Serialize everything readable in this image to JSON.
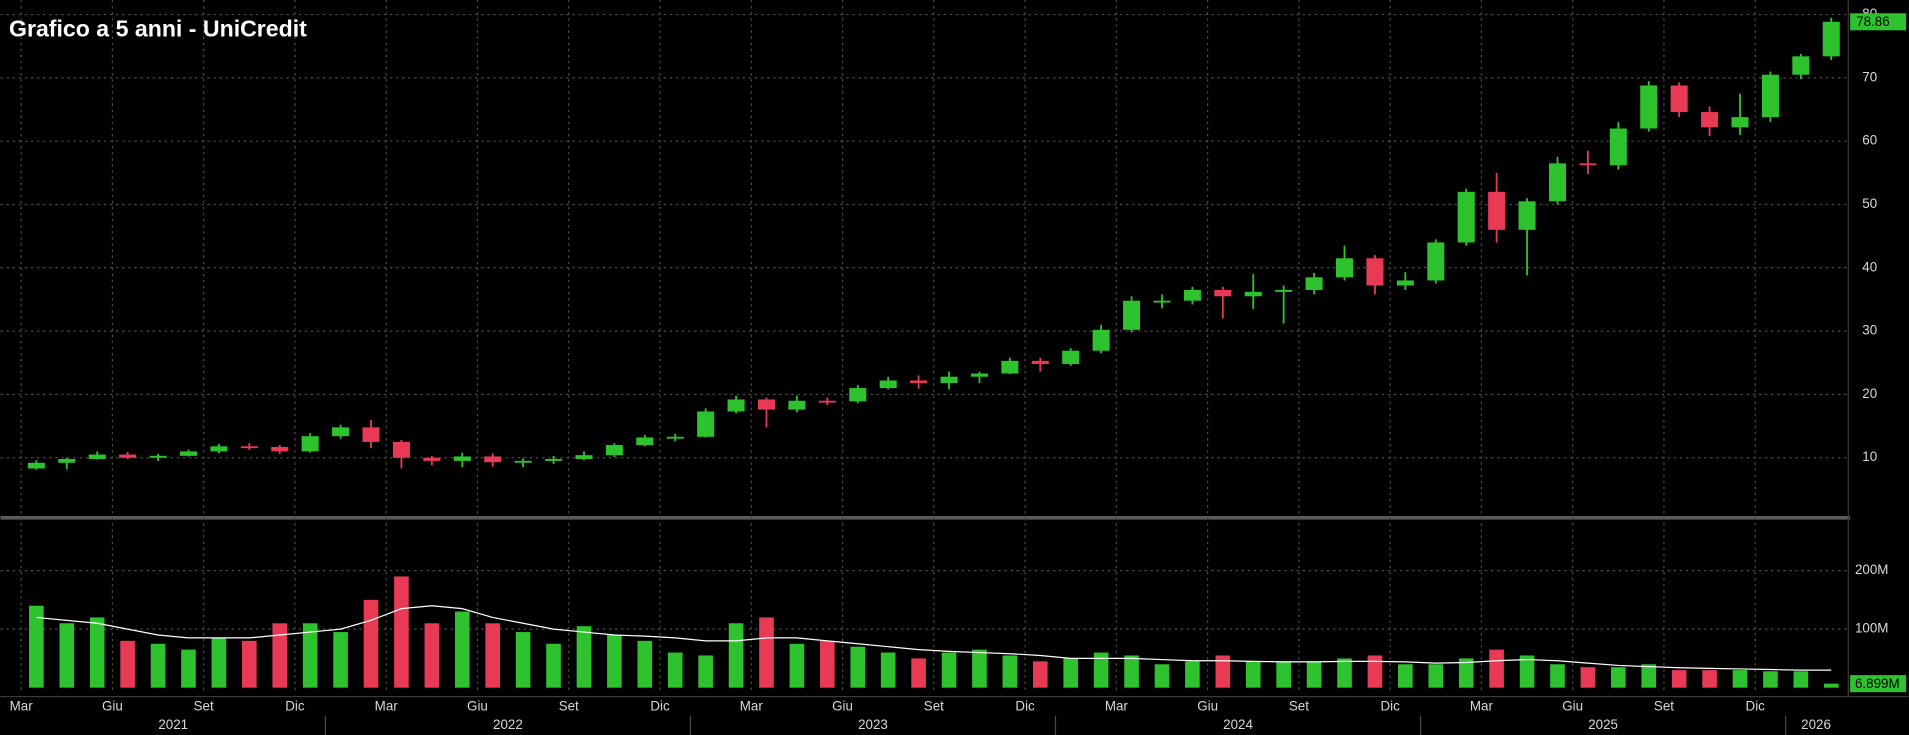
{
  "chart_data": {
    "type": "candlestick",
    "title": "Grafico a 5 anni - UniCredit",
    "x": [
      "2021-03",
      "2021-04",
      "2021-05",
      "2021-06",
      "2021-07",
      "2021-08",
      "2021-09",
      "2021-10",
      "2021-11",
      "2021-12",
      "2022-01",
      "2022-02",
      "2022-03",
      "2022-04",
      "2022-05",
      "2022-06",
      "2022-07",
      "2022-08",
      "2022-09",
      "2022-10",
      "2022-11",
      "2022-12",
      "2023-01",
      "2023-02",
      "2023-03",
      "2023-04",
      "2023-05",
      "2023-06",
      "2023-07",
      "2023-08",
      "2023-09",
      "2023-10",
      "2023-11",
      "2023-12",
      "2024-01",
      "2024-02",
      "2024-03",
      "2024-04",
      "2024-05",
      "2024-06",
      "2024-07",
      "2024-08",
      "2024-09",
      "2024-10",
      "2024-11",
      "2024-12",
      "2025-01",
      "2025-02",
      "2025-03",
      "2025-04",
      "2025-05",
      "2025-06",
      "2025-07",
      "2025-08",
      "2025-09",
      "2025-10",
      "2025-11",
      "2025-12",
      "2026-01",
      "2026-02"
    ],
    "open": [
      8.3,
      9.2,
      9.8,
      10.5,
      10,
      10.3,
      11,
      11.8,
      11.7,
      11,
      13.4,
      14.8,
      12.5,
      10,
      9.5,
      10.2,
      9.3,
      9.5,
      9.8,
      10.4,
      12,
      13.2,
      13.3,
      17.3,
      19.2,
      17.6,
      19,
      18.9,
      21,
      22.2,
      21.8,
      22.8,
      23.3,
      25.3,
      24.8,
      26.9,
      30.2,
      34.8,
      34.8,
      36.5,
      35.5,
      36.2,
      36.5,
      38.5,
      41.5,
      37.2,
      38,
      44,
      52,
      46,
      50.5,
      56.5,
      56.2,
      62,
      68.8,
      64.6,
      62.2,
      63.8,
      70.5,
      73.4
    ],
    "high": [
      9.6,
      10,
      11,
      10.9,
      10.6,
      11.3,
      12.2,
      12.3,
      12,
      13.9,
      15.2,
      16,
      12.8,
      10.3,
      10.8,
      10.7,
      9.9,
      10.3,
      11,
      12.3,
      13.6,
      13.8,
      17.8,
      19.8,
      19.5,
      19.8,
      19.5,
      21.5,
      22.8,
      23,
      23.6,
      23.6,
      25.8,
      25.8,
      27.3,
      31,
      35.5,
      35.8,
      37,
      37,
      39,
      37.2,
      39.2,
      43.5,
      42,
      39.3,
      44.5,
      52.5,
      55,
      51,
      57.5,
      58.5,
      63,
      69.5,
      69.3,
      65.5,
      67.5,
      71,
      73.8,
      79.5
    ],
    "low": [
      8.1,
      8.2,
      9.7,
      9.8,
      9.5,
      10.2,
      10.7,
      11.2,
      10.6,
      10.8,
      13,
      11.5,
      8.3,
      8.8,
      8.5,
      8.6,
      8.5,
      9,
      9.6,
      10.1,
      11.8,
      12.6,
      13.2,
      17,
      14.8,
      17.2,
      18.3,
      18.6,
      20.8,
      20.9,
      20.8,
      21.8,
      23.2,
      23.6,
      24.5,
      26.5,
      29.8,
      33.6,
      34.2,
      32,
      33.5,
      31.2,
      35.8,
      38,
      35.8,
      36.5,
      37.5,
      43.5,
      44,
      38.8,
      50,
      54.8,
      55.5,
      61.5,
      63.8,
      60.8,
      61,
      63,
      69.8,
      72.8
    ],
    "close": [
      9.2,
      9.8,
      10.5,
      10,
      10.3,
      11,
      11.8,
      11.7,
      11,
      13.4,
      14.8,
      12.5,
      10,
      9.5,
      10.2,
      9.3,
      9.5,
      9.8,
      10.4,
      12,
      13.2,
      13.3,
      17.3,
      19.2,
      17.6,
      19,
      18.9,
      21,
      22.2,
      21.8,
      22.8,
      23.3,
      25.3,
      24.8,
      26.9,
      30.2,
      34.8,
      34.8,
      36.5,
      35.5,
      36.2,
      36.5,
      38.5,
      41.5,
      37.2,
      38,
      44,
      52,
      46,
      50.5,
      56.5,
      56.2,
      62,
      68.8,
      64.6,
      62.2,
      63.8,
      70.5,
      73.4,
      78.86
    ],
    "up_color": "#2ec32e",
    "down_color": "#e83a55",
    "ylim": [
      0.8,
      82.3
    ],
    "yticks": [
      10,
      20,
      30,
      40,
      50,
      60,
      70,
      80
    ],
    "grid": true,
    "volume": {
      "values": [
        140,
        110,
        120,
        80,
        75,
        65,
        85,
        80,
        110,
        110,
        95,
        150,
        190,
        110,
        130,
        110,
        95,
        75,
        105,
        90,
        80,
        60,
        55,
        110,
        120,
        75,
        80,
        70,
        60,
        50,
        60,
        65,
        55,
        45,
        50,
        60,
        55,
        40,
        45,
        55,
        45,
        45,
        45,
        50,
        55,
        40,
        40,
        50,
        65,
        55,
        40,
        35,
        35,
        40,
        30,
        30,
        30,
        28,
        28,
        6.899
      ],
      "value_labels": [
        null,
        null,
        null,
        null,
        null,
        null,
        null,
        null,
        null,
        null,
        null,
        null,
        null,
        null,
        null,
        null,
        null,
        null,
        null,
        null,
        null,
        null,
        null,
        null,
        null,
        null,
        null,
        null,
        null,
        null,
        null,
        null,
        null,
        null,
        null,
        null,
        null,
        null,
        null,
        null,
        null,
        null,
        null,
        null,
        null,
        null,
        null,
        null,
        null,
        null,
        null,
        null,
        null,
        null,
        null,
        null,
        null,
        null,
        null,
        "6.899M"
      ],
      "ma_values": [
        120,
        115,
        110,
        100,
        90,
        85,
        85,
        85,
        90,
        95,
        100,
        115,
        135,
        140,
        135,
        120,
        110,
        100,
        95,
        90,
        88,
        85,
        80,
        80,
        85,
        85,
        80,
        75,
        70,
        65,
        62,
        60,
        58,
        55,
        50,
        50,
        50,
        48,
        46,
        46,
        45,
        44,
        44,
        45,
        45,
        44,
        42,
        43,
        46,
        48,
        46,
        42,
        38,
        36,
        34,
        33,
        32,
        31,
        30,
        30
      ],
      "ma_color": "#ffffff",
      "ylim": [
        -6,
        285
      ],
      "yticks": [
        {
          "value": 100,
          "label": "100M"
        },
        {
          "value": 200,
          "label": "200M"
        }
      ]
    },
    "x_month_ticks": [
      {
        "value": "2021-03",
        "label": "Mar"
      },
      {
        "value": "2021-06",
        "label": "Giu"
      },
      {
        "value": "2021-09",
        "label": "Set"
      },
      {
        "value": "2021-12",
        "label": "Dic"
      },
      {
        "value": "2022-03",
        "label": "Mar"
      },
      {
        "value": "2022-06",
        "label": "Giu"
      },
      {
        "value": "2022-09",
        "label": "Set"
      },
      {
        "value": "2022-12",
        "label": "Dic"
      },
      {
        "value": "2023-03",
        "label": "Mar"
      },
      {
        "value": "2023-06",
        "label": "Giu"
      },
      {
        "value": "2023-09",
        "label": "Set"
      },
      {
        "value": "2023-12",
        "label": "Dic"
      },
      {
        "value": "2024-03",
        "label": "Mar"
      },
      {
        "value": "2024-06",
        "label": "Giu"
      },
      {
        "value": "2024-09",
        "label": "Set"
      },
      {
        "value": "2024-12",
        "label": "Dic"
      },
      {
        "value": "2025-03",
        "label": "Mar"
      },
      {
        "value": "2025-06",
        "label": "Giu"
      },
      {
        "value": "2025-09",
        "label": "Set"
      },
      {
        "value": "2025-12",
        "label": "Dic"
      }
    ],
    "x_year_ticks": [
      2021,
      2022,
      2023,
      2024,
      2025,
      2026
    ]
  }
}
